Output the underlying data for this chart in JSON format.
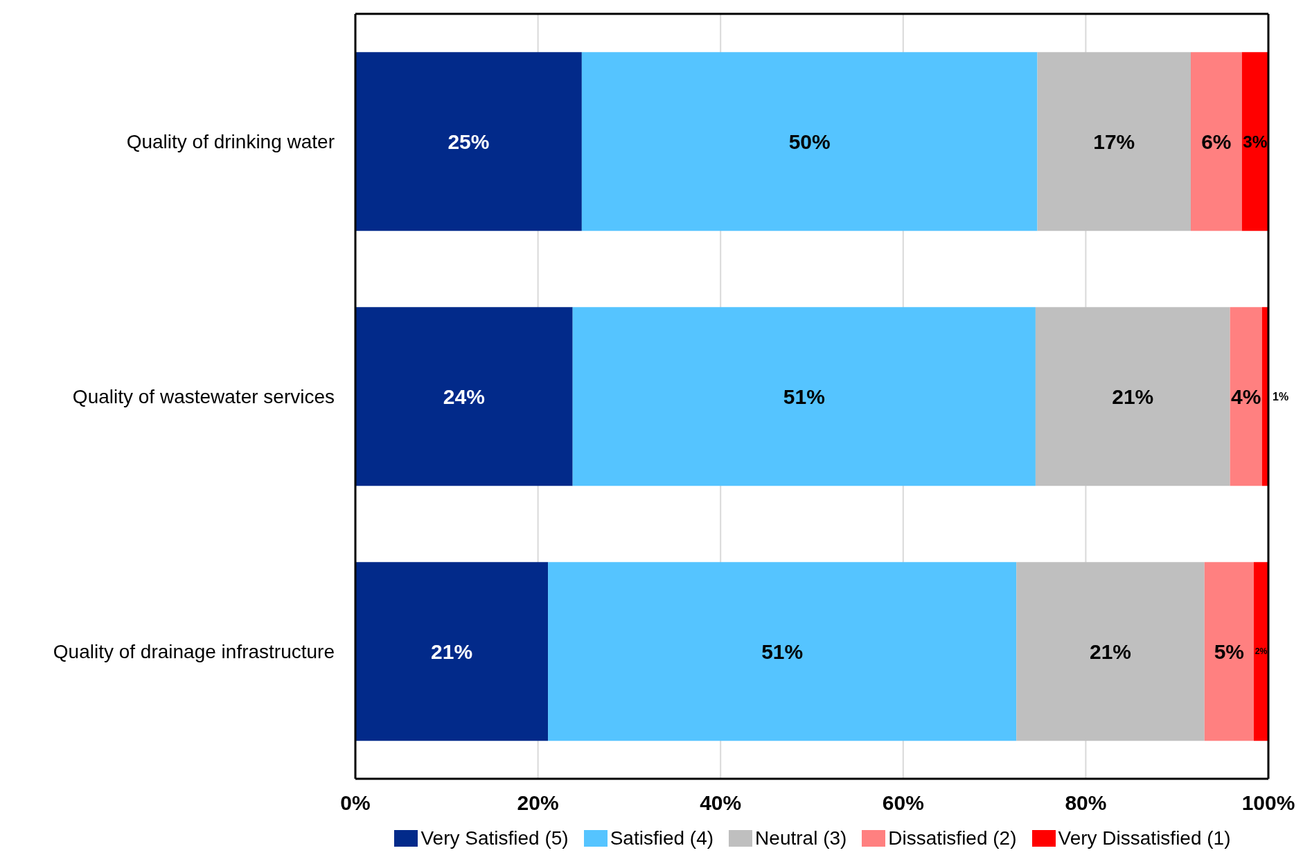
{
  "chart_data": {
    "type": "bar",
    "orientation": "horizontal",
    "stacked": true,
    "categories": [
      "Quality of drinking water",
      "Quality of wastewater services",
      "Quality of drainage infrastructure"
    ],
    "series": [
      {
        "name": "Very Satisfied (5)",
        "color": "#022a8a",
        "values": [
          24.8,
          23.8,
          21.1
        ],
        "value_labels": [
          "25%",
          "24%",
          "21%"
        ]
      },
      {
        "name": "Satisfied (4)",
        "color": "#55c4ff",
        "values": [
          49.9,
          50.7,
          51.3
        ],
        "value_labels": [
          "50%",
          "51%",
          "51%"
        ]
      },
      {
        "name": "Neutral (3)",
        "color": "#bfbfbf",
        "values": [
          16.8,
          21.3,
          20.6
        ],
        "value_labels": [
          "17%",
          "21%",
          "21%"
        ]
      },
      {
        "name": "Dissatisfied (2)",
        "color": "#ff8080",
        "values": [
          5.6,
          3.5,
          5.4
        ],
        "value_labels": [
          "6%",
          "4%",
          "5%"
        ]
      },
      {
        "name": "Very Dissatisfied (1)",
        "color": "#ff0000",
        "values": [
          2.9,
          0.7,
          1.6
        ],
        "value_labels": [
          "3%",
          "1%",
          "2%"
        ]
      }
    ],
    "xlim": [
      0,
      100
    ],
    "xticks": [
      {
        "value": 0,
        "label": "0%"
      },
      {
        "value": 20,
        "label": "20%"
      },
      {
        "value": 40,
        "label": "40%"
      },
      {
        "value": 60,
        "label": "60%"
      },
      {
        "value": 80,
        "label": "80%"
      },
      {
        "value": 100,
        "label": "100%"
      }
    ],
    "grid": "x",
    "legend": "bottom"
  }
}
